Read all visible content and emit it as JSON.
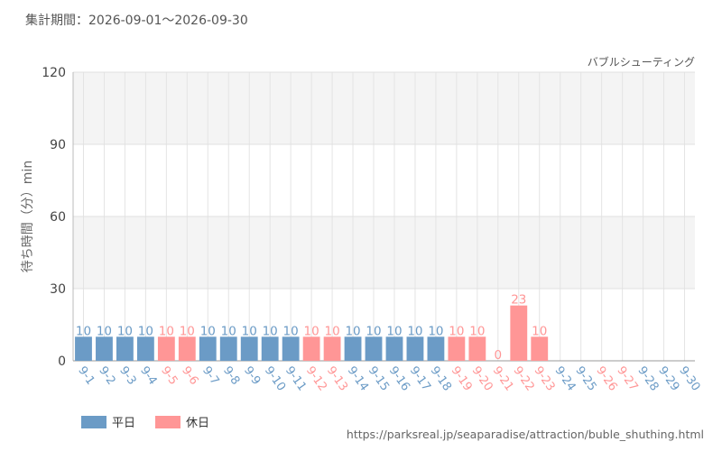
{
  "period_label": "集計期間：2026-09-01～2026-09-30",
  "attraction_name": "バブルシューティング",
  "source_url": "https://parksreal.jp/seaparadise/attraction/buble_shuthing.html",
  "legend": [
    {
      "label": "平日",
      "color": "#6b9bc6"
    },
    {
      "label": "休日",
      "color": "#ff9696"
    }
  ],
  "chart_data": {
    "type": "bar",
    "ylabel": "待ち時間（分）min",
    "ylim": [
      0,
      120
    ],
    "yticks": [
      0,
      30,
      60,
      90,
      120
    ],
    "grid": true,
    "legend_position": "bottom-left",
    "categories": [
      "9-1",
      "9-2",
      "9-3",
      "9-4",
      "9-5",
      "9-6",
      "9-7",
      "9-8",
      "9-9",
      "9-10",
      "9-11",
      "9-12",
      "9-13",
      "9-14",
      "9-15",
      "9-16",
      "9-17",
      "9-18",
      "9-19",
      "9-20",
      "9-21",
      "9-22",
      "9-23",
      "9-24",
      "9-25",
      "9-26",
      "9-27",
      "9-28",
      "9-29",
      "9-30"
    ],
    "values": [
      10,
      10,
      10,
      10,
      10,
      10,
      10,
      10,
      10,
      10,
      10,
      10,
      10,
      10,
      10,
      10,
      10,
      10,
      10,
      10,
      0,
      23,
      10,
      null,
      null,
      null,
      null,
      null,
      null,
      null
    ],
    "day_type": [
      "平日",
      "平日",
      "平日",
      "平日",
      "休日",
      "休日",
      "平日",
      "平日",
      "平日",
      "平日",
      "平日",
      "休日",
      "休日",
      "平日",
      "平日",
      "平日",
      "平日",
      "平日",
      "休日",
      "休日",
      "休日",
      "休日",
      "休日",
      "平日",
      "平日",
      "休日",
      "休日",
      "平日",
      "平日",
      "平日"
    ],
    "colors": {
      "平日": "#6b9bc6",
      "休日": "#ff9696"
    }
  }
}
